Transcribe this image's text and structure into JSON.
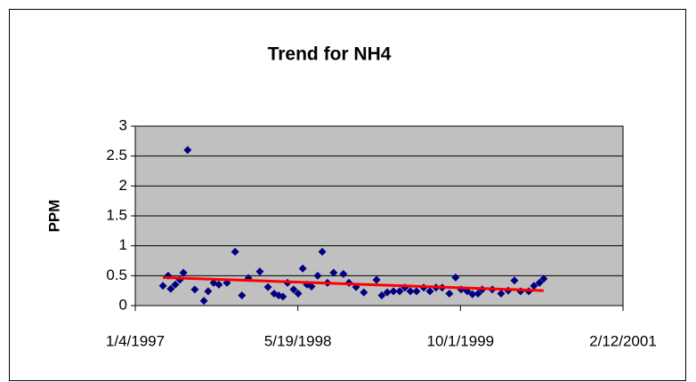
{
  "chart_data": {
    "type": "scatter",
    "title": "Trend for NH4",
    "y_label": "PPM",
    "series": [
      {
        "color": "#000080",
        "x": [
          35519,
          35535,
          35543,
          35557,
          35571,
          35582,
          35595,
          35617,
          35645,
          35658,
          35675,
          35691,
          35716,
          35741,
          35762,
          35782,
          35817,
          35842,
          35861,
          35875,
          35888,
          35902,
          35921,
          35935,
          35949,
          35962,
          35976,
          35995,
          36009,
          36025,
          36044,
          36074,
          36091,
          36113,
          36137,
          36176,
          36192,
          36209,
          36228,
          36247,
          36263,
          36280,
          36299,
          36321,
          36340,
          36359,
          36378,
          36400,
          36419,
          36436,
          36455,
          36471,
          36488,
          36501,
          36532,
          36559,
          36581,
          36600,
          36619,
          36644,
          36660,
          36677,
          36690
        ],
        "values": [
          0.33,
          0.5,
          0.28,
          0.35,
          0.43,
          0.55,
          2.6,
          0.27,
          0.08,
          0.24,
          0.38,
          0.35,
          0.38,
          0.9,
          0.17,
          0.46,
          0.57,
          0.31,
          0.2,
          0.17,
          0.15,
          0.38,
          0.27,
          0.2,
          0.62,
          0.35,
          0.32,
          0.5,
          0.9,
          0.38,
          0.55,
          0.53,
          0.38,
          0.31,
          0.22,
          0.43,
          0.17,
          0.22,
          0.24,
          0.24,
          0.3,
          0.24,
          0.24,
          0.3,
          0.24,
          0.3,
          0.3,
          0.2,
          0.47,
          0.27,
          0.24,
          0.19,
          0.2,
          0.27,
          0.27,
          0.2,
          0.25,
          0.42,
          0.24,
          0.24,
          0.33,
          0.38,
          0.45
        ]
      }
    ],
    "trendline": {
      "color": "#ff0000",
      "x": [
        35519,
        36690
      ],
      "values": [
        0.47,
        0.25
      ]
    },
    "xlim": [
      35434,
      36934
    ],
    "xticks": [
      {
        "value": 35434,
        "label": "1/4/1997"
      },
      {
        "value": 35934,
        "label": "5/19/1998"
      },
      {
        "value": 36434,
        "label": "10/1/1999"
      },
      {
        "value": 36934,
        "label": "2/12/2001"
      }
    ],
    "ylim": [
      0,
      3
    ],
    "yticks": [
      0,
      0.5,
      1,
      1.5,
      2,
      2.5,
      3
    ],
    "grid": true,
    "plot_background": "#c0c0c0"
  }
}
